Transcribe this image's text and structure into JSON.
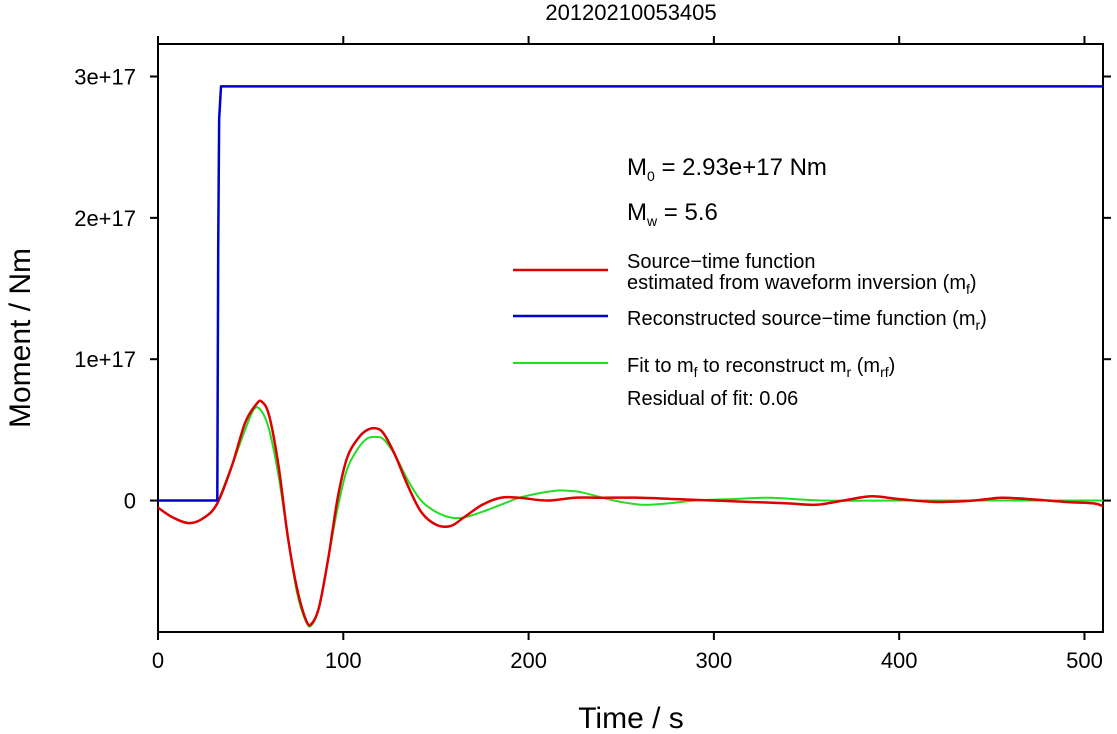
{
  "chart_data": {
    "type": "line",
    "title": "20120210053405",
    "xlabel": "Time / s",
    "ylabel": "Moment / Nm",
    "xlim": [
      0,
      510
    ],
    "ylim": [
      -9.3e+16,
      3.23e+17
    ],
    "x_ticks": [
      0,
      100,
      200,
      300,
      400,
      500
    ],
    "x_tick_labels": [
      "0",
      "100",
      "200",
      "300",
      "400",
      "500"
    ],
    "y_ticks": [
      0,
      1e+17,
      2e+17,
      3e+17
    ],
    "y_tick_labels": [
      "0",
      "1e+17",
      "2e+17",
      "3e+17"
    ],
    "grid": false,
    "legend_position": "right",
    "annotations": {
      "m0_label": "M",
      "m0_sub": "0",
      "m0_value": " = 2.93e+17 Nm",
      "mw_label": "M",
      "mw_sub": "w",
      "mw_value": " = 5.6",
      "residual": "Residual of fit: 0.06"
    },
    "legend": [
      {
        "key": "red",
        "line1": "Source−time function",
        "line2": "estimated from waveform inversion (m",
        "sub": "f",
        "tail": ")"
      },
      {
        "key": "blue",
        "line1": "Reconstructed source−time function (m",
        "sub": "r",
        "tail": ")"
      },
      {
        "key": "green",
        "line1a": "Fit to m",
        "sub1": "f",
        "line1b": " to reconstruct m",
        "sub2": "r",
        "line1c": " (m",
        "sub3": "rf",
        "tail": ")"
      }
    ],
    "series": [
      {
        "key": "blue",
        "color": "#0000cc",
        "x": [
          0,
          32,
          32.5,
          33,
          34,
          510
        ],
        "y": [
          0,
          0,
          1.8e+17,
          2.7e+17,
          2.93e+17,
          2.93e+17
        ]
      },
      {
        "key": "red",
        "color": "#dd0000",
        "x": [
          0,
          8,
          17,
          25,
          32,
          40,
          47,
          53,
          56,
          60,
          65,
          70,
          75,
          80,
          83,
          87,
          92,
          97,
          102,
          108,
          113,
          118,
          122,
          128,
          135,
          142,
          150,
          158,
          165,
          175,
          185,
          195,
          210,
          225,
          240,
          260,
          280,
          300,
          320,
          340,
          355,
          370,
          385,
          400,
          420,
          440,
          455,
          470,
          490,
          505,
          510
        ],
        "y": [
          -5000000000000000.0,
          -1.2e+16,
          -1.6e+16,
          -1.2e+16,
          -2000000000000000.0,
          2.5e+16,
          5.5e+16,
          6.8e+16,
          7e+16,
          6e+16,
          2.5e+16,
          -2.5e+16,
          -6.2e+16,
          -8.5e+16,
          -8.7e+16,
          -7.5e+16,
          -4e+16,
          2000000000000000.0,
          3e+16,
          4.4e+16,
          5e+16,
          5.1e+16,
          4.7e+16,
          3.2e+16,
          1e+16,
          -8000000000000000.0,
          -1.7e+16,
          -1.8e+16,
          -1.2e+16,
          -3000000000000000.0,
          2000000000000000.0,
          2000000000000000.0,
          0.0,
          2000000000000000.0,
          2000000000000000.0,
          2000000000000000.0,
          1000000000000000.0,
          0.0,
          -1000000000000000.0,
          -2000000000000000.0,
          -3000000000000000.0,
          0.0,
          3000000000000000.0,
          1000000000000000.0,
          -1000000000000000.0,
          0.0,
          2000000000000000.0,
          1000000000000000.0,
          -1000000000000000.0,
          -2000000000000000.0,
          -4000000000000000.0
        ]
      },
      {
        "key": "green",
        "color": "#22dd22",
        "x": [
          32,
          40,
          47,
          52,
          56,
          60,
          65,
          70,
          75,
          80,
          83,
          87,
          92,
          97,
          102,
          108,
          113,
          118,
          122,
          128,
          135,
          142,
          150,
          158,
          165,
          175,
          185,
          195,
          205,
          215,
          220,
          228,
          240,
          250,
          262,
          275,
          290,
          310,
          330,
          360,
          400,
          450,
          510
        ],
        "y": [
          -2000000000000000.0,
          2.5e+16,
          5e+16,
          6.5e+16,
          6.3e+16,
          5e+16,
          1.8e+16,
          -2.5e+16,
          -6.5e+16,
          -8.6e+16,
          -8.8e+16,
          -7.5e+16,
          -4e+16,
          -5000000000000000.0,
          2.2e+16,
          3.7e+16,
          4.4e+16,
          4.5e+16,
          4.3e+16,
          3.2e+16,
          1.4e+16,
          0.0,
          -8000000000000000.0,
          -1.2e+16,
          -1.2e+16,
          -8000000000000000.0,
          -3000000000000000.0,
          2000000000000000.0,
          5000000000000000.0,
          7000000000000000.0,
          7000000000000000.0,
          6000000000000000.0,
          2000000000000000.0,
          -1000000000000000.0,
          -3000000000000000.0,
          -2000000000000000.0,
          0.0,
          1000000000000000.0,
          2000000000000000.0,
          0.0,
          0.0,
          0.0,
          0.0
        ]
      }
    ]
  }
}
